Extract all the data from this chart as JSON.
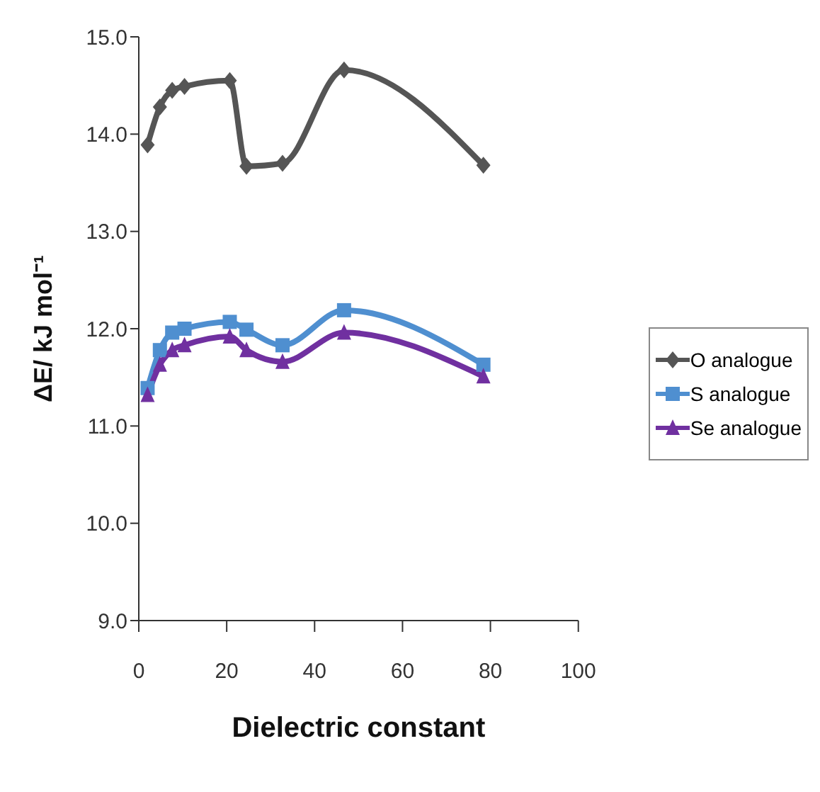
{
  "chart_data": {
    "type": "line",
    "xlabel": "Dielectric constant",
    "ylabel": "ΔE/ kJ mol⁻¹",
    "x": [
      2,
      4.8,
      7.6,
      10.4,
      20.7,
      24.5,
      32.7,
      46.7,
      78.4
    ],
    "series": [
      {
        "name": "O analogue",
        "color": "#555555",
        "marker": "diamond",
        "values": [
          13.89,
          14.28,
          14.45,
          14.49,
          14.55,
          13.67,
          13.7,
          14.66,
          13.68
        ]
      },
      {
        "name": "S analogue",
        "color": "#4f8fd0",
        "marker": "square",
        "values": [
          11.39,
          11.78,
          11.96,
          12.0,
          12.07,
          11.99,
          11.83,
          12.19,
          11.63
        ]
      },
      {
        "name": "Se analogue",
        "color": "#7030a0",
        "marker": "triangle",
        "values": [
          11.32,
          11.63,
          11.78,
          11.83,
          11.92,
          11.78,
          11.66,
          11.96,
          11.51
        ]
      }
    ],
    "xlim": [
      0,
      100
    ],
    "xticks": [
      0,
      20,
      40,
      60,
      80,
      100
    ],
    "ylim": [
      9,
      15
    ],
    "yticks": [
      {
        "value": 9,
        "label": "9.0"
      },
      {
        "value": 10,
        "label": "10.0"
      },
      {
        "value": 11,
        "label": "11.0"
      },
      {
        "value": 12,
        "label": "12.0"
      },
      {
        "value": 13,
        "label": "13.0"
      },
      {
        "value": 14,
        "label": "14.0"
      },
      {
        "value": 15,
        "label": "15.0"
      }
    ],
    "grid": false,
    "legend": "right",
    "line_style": "solid"
  }
}
